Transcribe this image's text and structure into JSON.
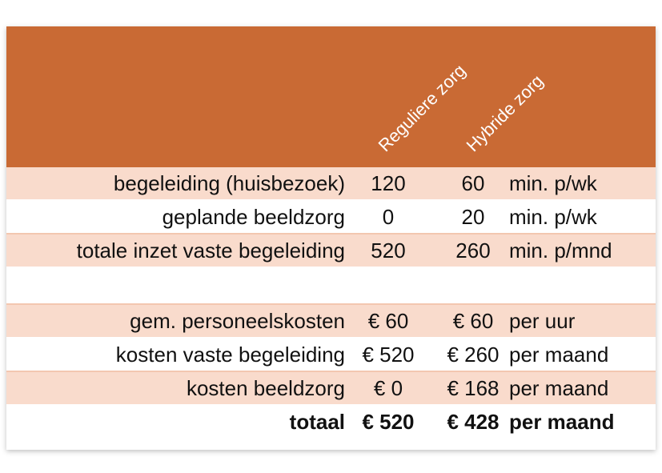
{
  "columns": [
    "Reguliere zorg",
    "Hybride zorg"
  ],
  "rows": [
    {
      "label": "begeleiding (huisbezoek)",
      "v1": "120",
      "v2": "60",
      "unit": "min. p/wk"
    },
    {
      "label": "geplande beeldzorg",
      "v1": "0",
      "v2": "20",
      "unit": "min. p/wk"
    },
    {
      "label": "totale inzet vaste begeleiding",
      "v1": "520",
      "v2": "260",
      "unit": "min. p/mnd"
    },
    {
      "label": "",
      "v1": "",
      "v2": "",
      "unit": ""
    },
    {
      "label": "gem. personeelskosten",
      "v1": "€ 60",
      "v2": "€ 60",
      "unit": "per uur"
    },
    {
      "label": "kosten vaste begeleiding",
      "v1": "€ 520",
      "v2": "€ 260",
      "unit": "per maand"
    },
    {
      "label": "kosten beeldzorg",
      "v1": "€ 0",
      "v2": "€ 168",
      "unit": "per maand"
    },
    {
      "label": "totaal",
      "v1": "€ 520",
      "v2": "€ 428",
      "unit": "per maand"
    }
  ],
  "colors": {
    "header": "#c96a34",
    "row_shade": "#f9dbcc",
    "row_white": "#ffffff"
  }
}
